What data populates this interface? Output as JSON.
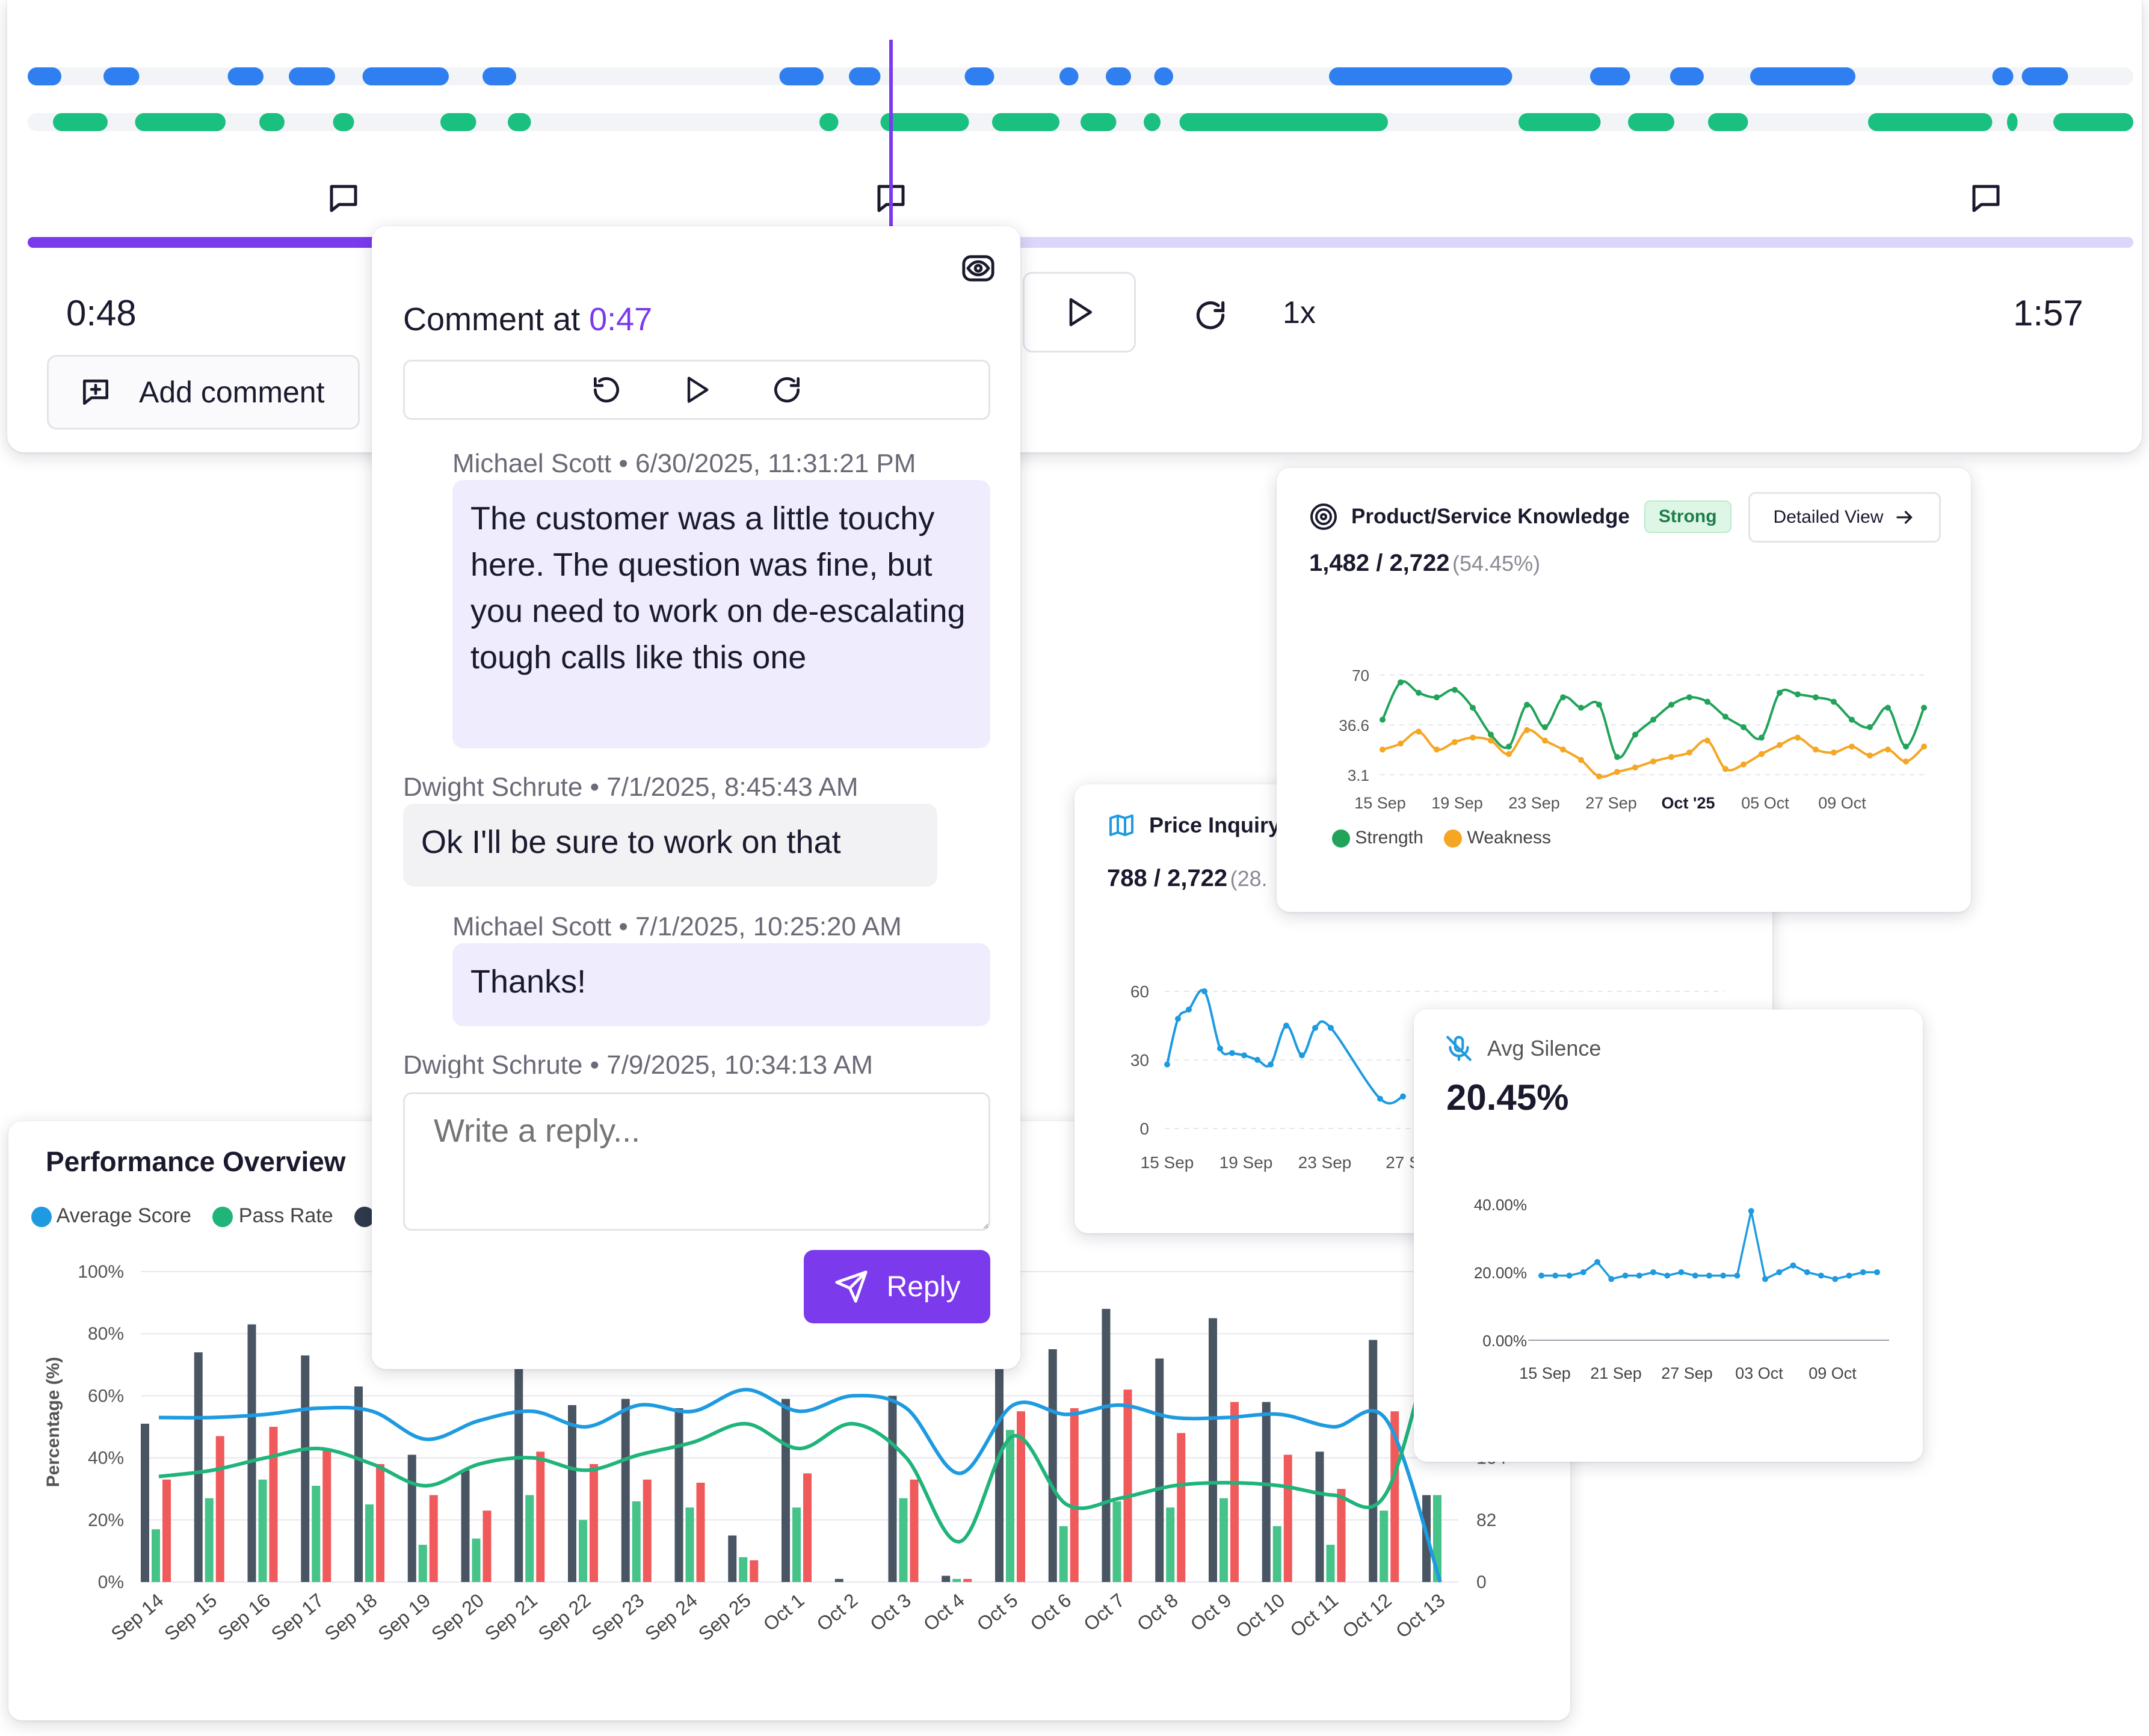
{
  "player": {
    "current_time": "0:48",
    "total_time": "1:57",
    "speed": "1x",
    "add_comment_label": "Add comment",
    "progress": 0.41,
    "marker_position": 0.41,
    "tracks": {
      "agent": [
        [
          0.0,
          0.016
        ],
        [
          0.036,
          0.053
        ],
        [
          0.095,
          0.112
        ],
        [
          0.124,
          0.146
        ],
        [
          0.159,
          0.2
        ],
        [
          0.216,
          0.232
        ],
        [
          0.357,
          0.378
        ],
        [
          0.39,
          0.405
        ],
        [
          0.445,
          0.459
        ],
        [
          0.49,
          0.499
        ],
        [
          0.512,
          0.524
        ],
        [
          0.535,
          0.544
        ],
        [
          0.618,
          0.705
        ],
        [
          0.742,
          0.761
        ],
        [
          0.78,
          0.796
        ],
        [
          0.818,
          0.868
        ],
        [
          0.933,
          0.943
        ],
        [
          0.947,
          0.969
        ]
      ],
      "customer": [
        [
          0.012,
          0.038
        ],
        [
          0.051,
          0.094
        ],
        [
          0.11,
          0.122
        ],
        [
          0.145,
          0.155
        ],
        [
          0.196,
          0.213
        ],
        [
          0.228,
          0.239
        ],
        [
          0.376,
          0.385
        ],
        [
          0.405,
          0.447
        ],
        [
          0.458,
          0.49
        ],
        [
          0.5,
          0.517
        ],
        [
          0.53,
          0.538
        ],
        [
          0.547,
          0.646
        ],
        [
          0.708,
          0.747
        ],
        [
          0.76,
          0.782
        ],
        [
          0.798,
          0.817
        ],
        [
          0.874,
          0.933
        ],
        [
          0.94,
          0.945
        ],
        [
          0.962,
          1.0
        ]
      ]
    },
    "comment_markers": [
      0.15,
      0.41,
      0.93
    ]
  },
  "comment_popup": {
    "title_prefix": "Comment at ",
    "title_time": "0:47",
    "messages": [
      {
        "author": "Michael Scott",
        "timestamp": "6/30/2025, 11:31:21 PM",
        "text": "The customer was a little touchy here. The question was fine, but you need to work on de-escalating tough calls like this one",
        "side": "right"
      },
      {
        "author": "Dwight Schrute",
        "timestamp": "7/1/2025, 8:45:43 AM",
        "text": "Ok I'll be sure to work on that",
        "side": "left"
      },
      {
        "author": "Michael Scott",
        "timestamp": "7/1/2025, 10:25:20 AM",
        "text": "Thanks!",
        "side": "right"
      },
      {
        "author": "Dwight Schrute",
        "timestamp": "7/9/2025, 10:34:13 AM",
        "text": "",
        "side": "left"
      }
    ],
    "reply_placeholder": "Write a reply...",
    "reply_button": "Reply",
    "separator": "•"
  },
  "knowledge_card": {
    "title": "Product/Service Knowledge",
    "badge": "Strong",
    "detail_button": "Detailed View",
    "count": "1,482 / 2,722",
    "percent": "(54.45%)",
    "legend": [
      "Strength",
      "Weakness"
    ],
    "colors": {
      "strength": "#22a35a",
      "weakness": "#f5a623"
    }
  },
  "price_card": {
    "title": "Price Inquiry",
    "count": "788 / 2,722",
    "percent": "(28.",
    "color": "#1e9be0"
  },
  "silence_card": {
    "title": "Avg Silence",
    "value": "20.45%",
    "color": "#1e9be0"
  },
  "performance_card": {
    "title": "Performance Overview",
    "legend": [
      "Average Score",
      "Pass Rate"
    ],
    "ylabel": "Percentage (%)",
    "colors": {
      "average_score": "#1e9be0",
      "pass_rate": "#1fb47a",
      "bar_dark": "#4a5563",
      "bar_green": "#45c389",
      "bar_red": "#f05a5a"
    }
  },
  "chart_data": [
    {
      "type": "line",
      "title": "Product/Service Knowledge",
      "x_ticks": [
        "15 Sep",
        "19 Sep",
        "23 Sep",
        "27 Sep",
        "Oct '25",
        "05 Oct",
        "09 Oct"
      ],
      "y_ticks": [
        "70",
        "36.6",
        "3.1"
      ],
      "ylim": [
        3.1,
        70
      ],
      "series": [
        {
          "name": "Strength",
          "values": [
            40,
            65,
            58,
            55,
            60,
            48,
            30,
            22,
            50,
            35,
            55,
            48,
            50,
            15,
            30,
            40,
            50,
            55,
            52,
            42,
            35,
            28,
            58,
            57,
            55,
            52,
            40,
            35,
            48,
            22,
            48
          ]
        },
        {
          "name": "Weakness",
          "values": [
            20,
            24,
            32,
            20,
            25,
            28,
            26,
            17,
            33,
            26,
            20,
            13,
            2,
            5,
            8,
            12,
            15,
            18,
            26,
            7,
            10,
            17,
            23,
            28,
            20,
            18,
            22,
            16,
            20,
            12,
            22
          ]
        }
      ]
    },
    {
      "type": "line",
      "title": "Price Inquiry",
      "x_ticks": [
        "15 Sep",
        "19 Sep",
        "23 Sep",
        "27 S"
      ],
      "y_ticks": [
        "60",
        "30",
        "0"
      ],
      "ylim": [
        0,
        60
      ],
      "series": [
        {
          "name": "",
          "values": [
            28,
            48,
            52,
            60,
            35,
            33,
            32,
            30,
            28,
            45,
            32,
            44,
            44,
            13,
            14
          ]
        }
      ]
    },
    {
      "type": "line",
      "title": "Avg Silence",
      "x_ticks": [
        "15 Sep",
        "21 Sep",
        "27 Sep",
        "03 Oct",
        "09 Oct"
      ],
      "y_ticks": [
        "40.00%",
        "20.00%",
        "0.00%"
      ],
      "ylim": [
        0,
        40
      ],
      "series": [
        {
          "name": "",
          "values": [
            19,
            19,
            19,
            20,
            23,
            18,
            19,
            19,
            20,
            19,
            20,
            19,
            19,
            19,
            19,
            38,
            18,
            20,
            22,
            20,
            19,
            18,
            19,
            20,
            20
          ]
        }
      ]
    },
    {
      "type": "bar",
      "title": "Performance Overview",
      "ylabel": "Percentage (%)",
      "categories": [
        "Sep 14",
        "Sep 15",
        "Sep 16",
        "Sep 17",
        "Sep 18",
        "Sep 19",
        "Sep 20",
        "Sep 21",
        "Sep 22",
        "Sep 23",
        "Sep 24",
        "Sep 25",
        "Oct 1",
        "Oct 2",
        "Oct 3",
        "Oct 4",
        "Oct 5",
        "Oct 6",
        "Oct 7",
        "Oct 8",
        "Oct 9",
        "Oct 10",
        "Oct 11",
        "Oct 12",
        "Oct 13"
      ],
      "y_ticks": [
        "100%",
        "80%",
        "60%",
        "40%",
        "20%",
        "0%"
      ],
      "right_ticks": [
        "164",
        "82",
        "0"
      ],
      "ylim": [
        0,
        100
      ],
      "series": [
        {
          "name": "Dark",
          "values": [
            51,
            74,
            83,
            73,
            63,
            41,
            36,
            71,
            57,
            59,
            56,
            15,
            59,
            1,
            60,
            2,
            73,
            75,
            88,
            72,
            85,
            58,
            42,
            78,
            28
          ]
        },
        {
          "name": "Green",
          "values": [
            17,
            27,
            33,
            31,
            25,
            12,
            14,
            28,
            20,
            26,
            24,
            8,
            24,
            0,
            27,
            1,
            49,
            18,
            26,
            24,
            27,
            18,
            12,
            23,
            28
          ]
        },
        {
          "name": "Red",
          "values": [
            33,
            47,
            50,
            43,
            38,
            28,
            23,
            42,
            38,
            33,
            32,
            7,
            35,
            0,
            33,
            1,
            55,
            56,
            62,
            48,
            58,
            41,
            30,
            55,
            0
          ]
        },
        {
          "name": "Average Score",
          "values": [
            53,
            53,
            54,
            56,
            55,
            46,
            52,
            55,
            50,
            57,
            55,
            62,
            55,
            60,
            56,
            35,
            57,
            54,
            57,
            53,
            53,
            54,
            50,
            52,
            0
          ]
        },
        {
          "name": "Pass Rate",
          "values": [
            34,
            36,
            40,
            43,
            38,
            31,
            38,
            40,
            36,
            41,
            45,
            51,
            43,
            51,
            40,
            13,
            47,
            25,
            27,
            31,
            32,
            31,
            28,
            29,
            90
          ]
        }
      ]
    }
  ]
}
